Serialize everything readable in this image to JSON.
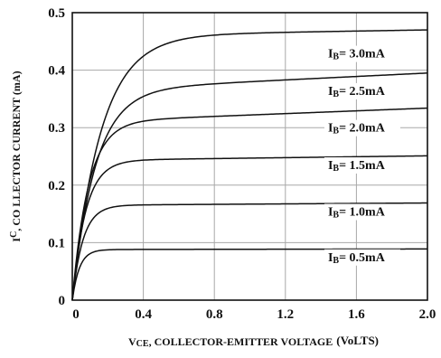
{
  "chart_data": {
    "type": "line",
    "xlabel_prefix": "V",
    "xlabel_sub": "CE",
    "xlabel_rest": ", COLLECTOR-EMITTER VOLTAGE",
    "xlabel_unit": "(VoLTS)",
    "ylabel_prefix": "I",
    "ylabel_sub": "C",
    "ylabel_rest": ", CO LLECTOR CURRENT (mA)",
    "xlim": [
      0,
      2.0
    ],
    "ylim": [
      0,
      0.5
    ],
    "x_ticks": [
      "0",
      "0.4",
      "0.8",
      "1.2",
      "1.6",
      "2.0"
    ],
    "y_ticks": [
      "0",
      "0.1",
      "0.2",
      "0.3",
      "0.4",
      "0.5"
    ],
    "grid": true,
    "series": [
      {
        "name": "I_B= 3.0mA",
        "label_main": "I",
        "label_sub": "B",
        "label_rest": "= 3.0mA",
        "saturation": 0.46,
        "slope": 0.005,
        "knee": 0.16,
        "label_x": 1.44,
        "label_y": 0.422
      },
      {
        "name": "I_B= 2.5mA",
        "label_main": "I",
        "label_sub": "B",
        "label_rest": "= 2.5mA",
        "saturation": 0.365,
        "slope": 0.015,
        "knee": 0.13,
        "label_x": 1.44,
        "label_y": 0.357
      },
      {
        "name": "I_B= 2.0mA",
        "label_main": "I",
        "label_sub": "B",
        "label_rest": "= 2.0mA",
        "saturation": 0.31,
        "slope": 0.012,
        "knee": 0.09,
        "label_x": 1.44,
        "label_y": 0.293
      },
      {
        "name": "I_B= 1.5mA",
        "label_main": "I",
        "label_sub": "B",
        "label_rest": "= 1.5mA",
        "saturation": 0.243,
        "slope": 0.004,
        "knee": 0.075,
        "label_x": 1.44,
        "label_y": 0.228
      },
      {
        "name": "I_B= 1.0mA",
        "label_main": "I",
        "label_sub": "B",
        "label_rest": "= 1.0mA",
        "saturation": 0.165,
        "slope": 0.002,
        "knee": 0.06,
        "label_x": 1.44,
        "label_y": 0.147
      },
      {
        "name": "I_B= 0.5mA",
        "label_main": "I",
        "label_sub": "B",
        "label_rest": "= 0.5mA",
        "saturation": 0.088,
        "slope": 0.0005,
        "knee": 0.04,
        "label_x": 1.44,
        "label_y": 0.068
      }
    ]
  }
}
